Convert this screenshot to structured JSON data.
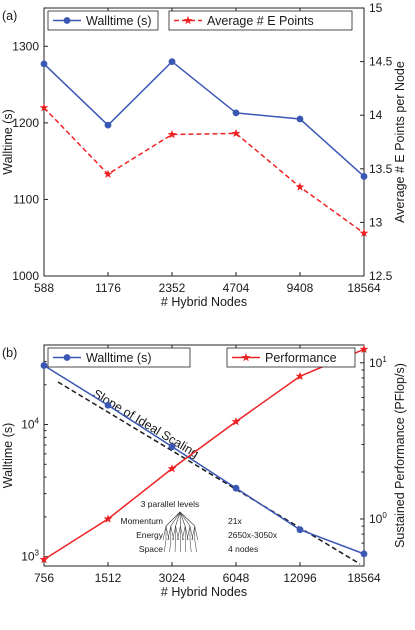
{
  "chart_data": [
    {
      "panel_label": "(a)",
      "type": "line",
      "xlabel": "# Hybrid Nodes",
      "ylabel": "Walltime (s)",
      "y2label": "Average # E Points per Node",
      "x": [
        "588",
        "1176",
        "2352",
        "4704",
        "9408",
        "18564"
      ],
      "yticks": [
        "1000",
        "1100",
        "1200",
        "1300"
      ],
      "y2ticks": [
        "12.5",
        "13",
        "13.5",
        "14",
        "14.5",
        "15"
      ],
      "ylim": [
        1000,
        1350
      ],
      "y2lim": [
        12.5,
        15
      ],
      "series": [
        {
          "name": "Walltime (s)",
          "axis": "left",
          "color": "#3a57b4",
          "marker": "circle",
          "line": "solid",
          "values": [
            1277,
            1197,
            1280,
            1213,
            1205,
            1130
          ]
        },
        {
          "name": "Average # E Points",
          "axis": "right",
          "color": "#ee2224",
          "marker": "star",
          "line": "dashed",
          "values": [
            14.07,
            13.45,
            13.82,
            13.83,
            13.33,
            12.9
          ]
        }
      ],
      "legend_position": "top"
    },
    {
      "panel_label": "(b)",
      "type": "line",
      "xlabel": "# Hybrid Nodes",
      "ylabel": "Walltime (s)",
      "y2label": "Sustained Performance (PFlop/s)",
      "x": [
        "756",
        "1512",
        "3024",
        "6048",
        "12096",
        "18564"
      ],
      "xscale": "log",
      "yscale": "log",
      "y2scale": "log",
      "yticks": [
        "10^3",
        "10^4"
      ],
      "y2ticks": [
        "10^0",
        "10^1"
      ],
      "ylim": [
        850,
        40000
      ],
      "y2lim": [
        0.5,
        13
      ],
      "series": [
        {
          "name": "Walltime (s)",
          "axis": "left",
          "color": "#3a57b4",
          "marker": "circle",
          "line": "solid",
          "values": [
            28000,
            14000,
            6800,
            3300,
            1600,
            1050
          ]
        },
        {
          "name": "Performance",
          "axis": "right",
          "color": "#ee2224",
          "marker": "star",
          "line": "solid",
          "values": [
            0.55,
            1.0,
            2.1,
            4.2,
            8.2,
            12.2
          ]
        }
      ],
      "reference_line": {
        "label": "Slope of Ideal Scaling",
        "style": "dashed",
        "color": "#1a1a1a"
      },
      "inset": {
        "title": "3 parallel levels",
        "levels": [
          "Momentum",
          "Energy",
          "Space"
        ],
        "counts": [
          "21x",
          "2650x-3050x",
          "4 nodes"
        ]
      },
      "legend_position": "top"
    }
  ]
}
